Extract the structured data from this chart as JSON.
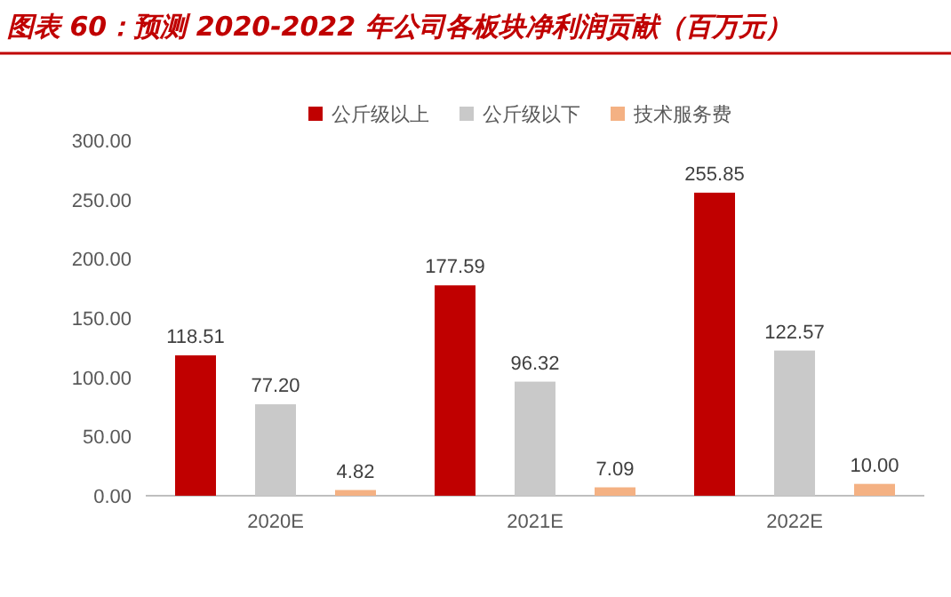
{
  "chart_data": {
    "type": "bar",
    "title": "图表 60：预测 2020-2022 年公司各板块净利润贡献（百万元）",
    "categories": [
      "2020E",
      "2021E",
      "2022E"
    ],
    "series": [
      {
        "name": "公斤级以上",
        "color": "#c00000",
        "values": [
          118.51,
          177.59,
          255.85
        ],
        "value_labels": [
          "118.51",
          "177.59",
          "255.85"
        ]
      },
      {
        "name": "公斤级以下",
        "color": "#c9c9c9",
        "values": [
          77.2,
          96.32,
          122.57
        ],
        "value_labels": [
          "77.20",
          "96.32",
          "122.57"
        ]
      },
      {
        "name": "技术服务费",
        "color": "#f4b183",
        "values": [
          4.82,
          7.09,
          10
        ],
        "value_labels": [
          "4.82",
          "7.09",
          "10.00"
        ]
      }
    ],
    "ylim": [
      0,
      300
    ],
    "yticks": [
      {
        "value": 0,
        "label": "0.00"
      },
      {
        "value": 50,
        "label": "50.00"
      },
      {
        "value": 100,
        "label": "100.00"
      },
      {
        "value": 150,
        "label": "150.00"
      },
      {
        "value": 200,
        "label": "200.00"
      },
      {
        "value": 250,
        "label": "250.00"
      },
      {
        "value": 300,
        "label": "300.00"
      }
    ],
    "legend": "top"
  }
}
